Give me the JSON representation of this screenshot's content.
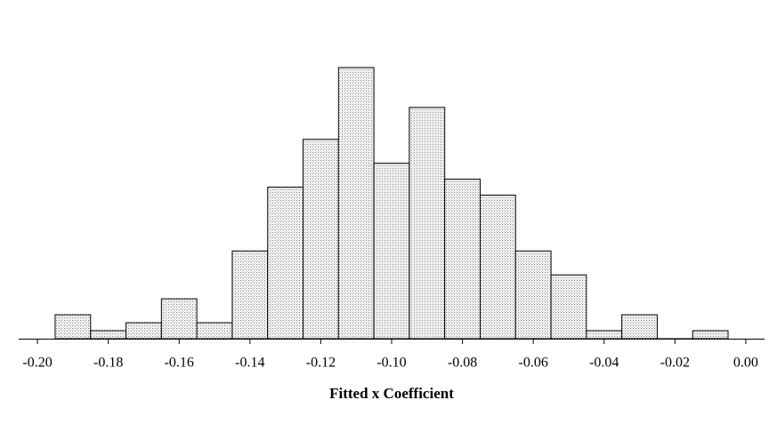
{
  "chart_data": {
    "type": "histogram",
    "x_label": "Fitted x Coefficient",
    "bins": [
      -0.195,
      -0.185,
      -0.175,
      -0.165,
      -0.155,
      -0.145,
      -0.135,
      -0.125,
      -0.115,
      -0.105,
      -0.095,
      -0.085,
      -0.075,
      -0.065,
      -0.055,
      -0.045,
      -0.035,
      -0.025,
      -0.015,
      -0.005
    ],
    "values": [
      3,
      1,
      2,
      5,
      2,
      11,
      19,
      25,
      34,
      22,
      29,
      20,
      18,
      11,
      8,
      1,
      3,
      0,
      1
    ],
    "xlim": [
      -0.2053,
      0.0053
    ],
    "xticks": [
      {
        "value": -0.2,
        "label": "-0.20"
      },
      {
        "value": -0.18,
        "label": "-0.18"
      },
      {
        "value": -0.16,
        "label": "-0.16"
      },
      {
        "value": -0.14,
        "label": "-0.14"
      },
      {
        "value": -0.12,
        "label": "-0.12"
      },
      {
        "value": -0.1,
        "label": "-0.10"
      },
      {
        "value": -0.08,
        "label": "-0.08"
      },
      {
        "value": -0.06,
        "label": "-0.06"
      },
      {
        "value": -0.04,
        "label": "-0.04"
      },
      {
        "value": -0.02,
        "label": "-0.02"
      },
      {
        "value": 0,
        "label": "0.00"
      }
    ],
    "ylim": [
      0,
      34
    ],
    "color": "#000000"
  }
}
